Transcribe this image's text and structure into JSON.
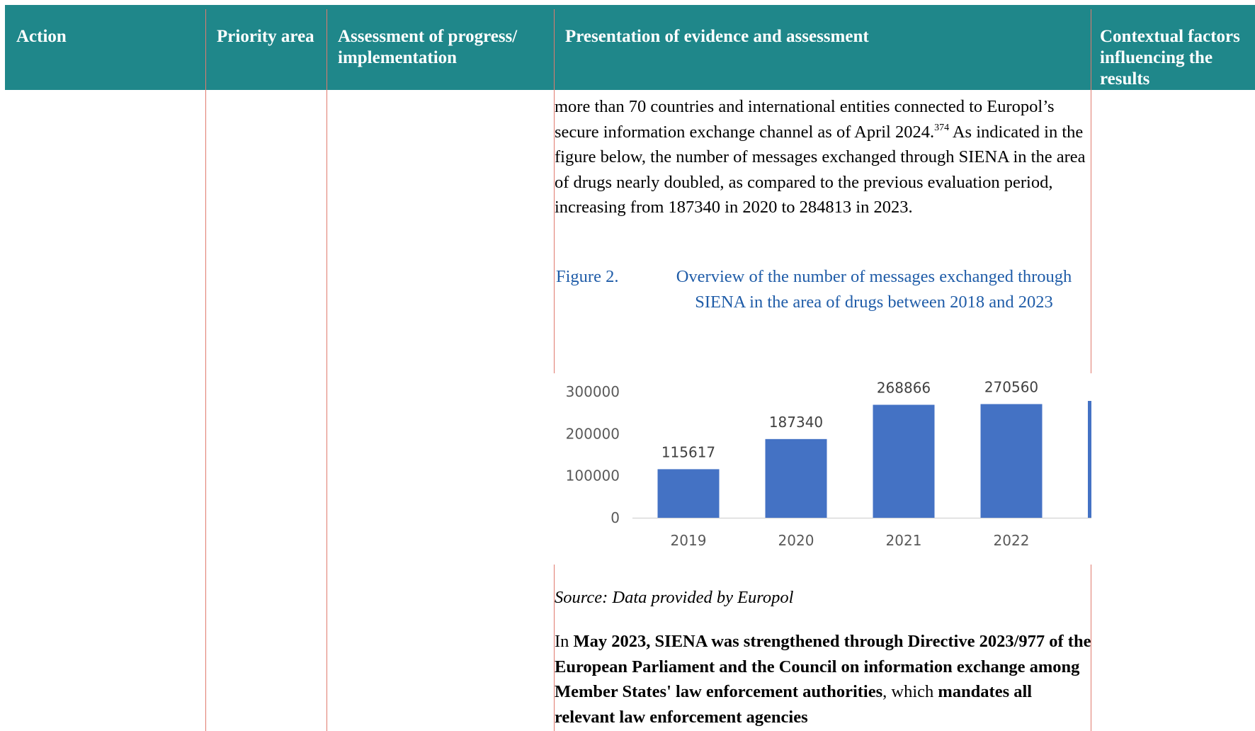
{
  "header": {
    "col_action": "Action",
    "col_priority": "Priority area",
    "col_assessment": "Assessment of progress/ implementation",
    "col_evidence": "Presentation of evidence and assessment",
    "col_contextual": "Contextual factors influencing the results"
  },
  "body": {
    "para1_part1": "more than 70 countries and international entities connected to Europol’s secure information exchange channel as of April 2024.",
    "para1_footnote": "374",
    "para1_part2": " As indicated in the figure below, the number of messages exchanged through SIENA in the area of drugs nearly doubled, as compared to the previous evaluation period, increasing from 187340 in 2020 to 284813 in 2023."
  },
  "figure": {
    "label": "Figure 2.",
    "title": "Overview of the number of messages exchanged through SIENA in the area of drugs between 2018 and 2023"
  },
  "chart_data": {
    "type": "bar",
    "categories": [
      "2019",
      "2020",
      "2021",
      "2022"
    ],
    "values": [
      115617,
      187340,
      268866,
      270560
    ],
    "data_labels": [
      "115617",
      "187340",
      "268866",
      "270560"
    ],
    "y_ticks": [
      "0",
      "100000",
      "200000",
      "300000"
    ],
    "ylim": [
      0,
      300000
    ],
    "bar_color": "#4472c4",
    "clipped_partial_bar": true
  },
  "source": "Source: Data provided by Europol",
  "para2": {
    "seg1": "In ",
    "seg2": "May 2023, SIENA was strengthened through Directive 2023/977 of the European Parliament and the Council on information exchange among Member States' law enforcement authorities",
    "seg3": ", which ",
    "seg4": "mandates all relevant law enforcement agencies"
  },
  "colors": {
    "header_bg": "#1f878a",
    "header_text": "#ffffff",
    "rule": "#e07a6e",
    "caption": "#1f5ca8"
  }
}
